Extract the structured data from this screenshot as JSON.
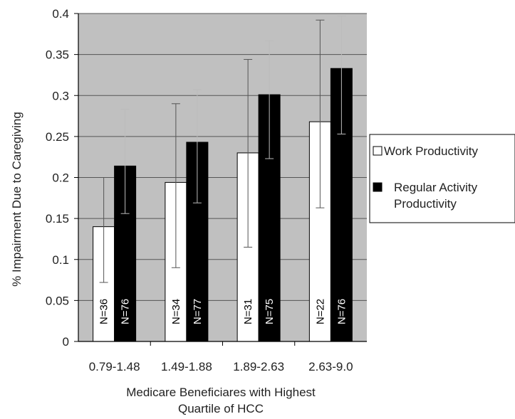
{
  "chart_data": {
    "type": "bar",
    "title": "",
    "xlabel": "Medicare Beneficiares with Highest Quartile of HCC",
    "xlabel_lines": [
      "Medicare Beneficiares with Highest",
      "Quartile of HCC"
    ],
    "ylabel": "% Impairment Due to Caregiving",
    "ylim": [
      0,
      0.4
    ],
    "yticks": [
      "0",
      "0.05",
      "0.1",
      "0.15",
      "0.2",
      "0.25",
      "0.3",
      "0.35",
      "0.4"
    ],
    "grid": true,
    "legend_position": "right",
    "categories": [
      "0.79-1.48",
      "1.49-1.88",
      "1.89-2.63",
      "2.63-9.0"
    ],
    "series": [
      {
        "name": "Work Productivity",
        "legend_lines": [
          "Work Productivity"
        ],
        "color": "#ffffff",
        "values": [
          0.14,
          0.194,
          0.23,
          0.268
        ],
        "error_low": [
          0.072,
          0.09,
          0.115,
          0.163
        ],
        "error_high": [
          0.2,
          0.29,
          0.344,
          0.392
        ],
        "n_labels": [
          "N=36",
          "N=34",
          "N=31",
          "N=22"
        ]
      },
      {
        "name": "Regular Activity Productivity",
        "legend_lines": [
          "Regular Activity",
          "Productivity"
        ],
        "color": "#000000",
        "values": [
          0.214,
          0.243,
          0.301,
          0.333
        ],
        "error_low": [
          0.156,
          0.169,
          0.223,
          0.253
        ],
        "error_high": [
          0.283,
          0.307,
          0.367,
          0.397
        ],
        "n_labels": [
          "N=76",
          "N=77",
          "N=75",
          "N=76"
        ]
      }
    ],
    "colors": {
      "plot_background": "#c0c0c0",
      "gridline": "#555555"
    }
  }
}
